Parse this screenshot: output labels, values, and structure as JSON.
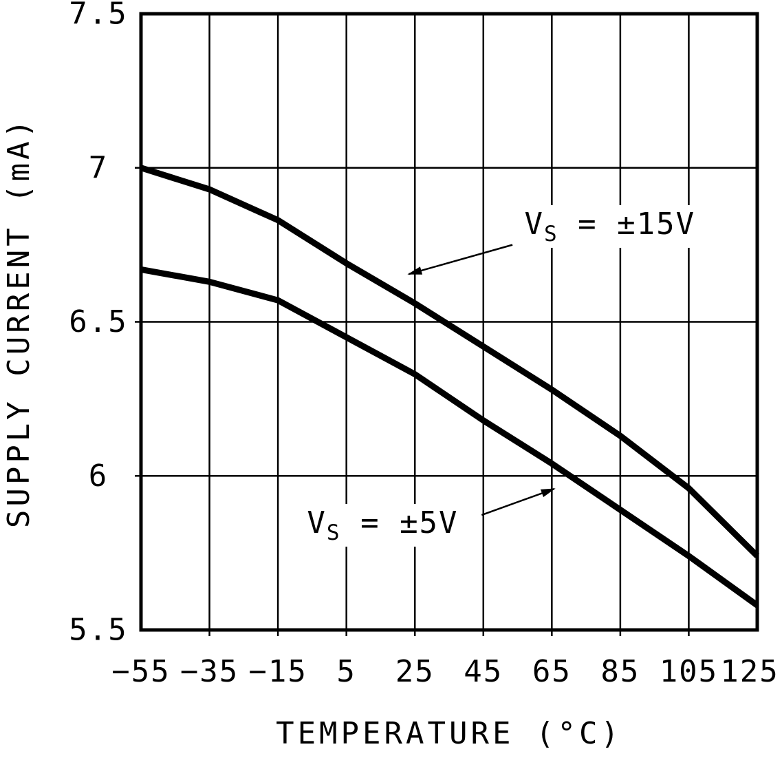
{
  "chart_data": {
    "type": "line",
    "title": "",
    "xlabel": "TEMPERATURE (°C)",
    "ylabel": "SUPPLY CURRENT (mA)",
    "xlim": [
      -55,
      125
    ],
    "ylim": [
      5.5,
      7.5
    ],
    "grid": true,
    "background_color": "#ffffff",
    "line_color": "#000000",
    "x_ticks": [
      {
        "value": -55,
        "label": "−55"
      },
      {
        "value": -35,
        "label": "−35"
      },
      {
        "value": -15,
        "label": "−15"
      },
      {
        "value": 5,
        "label": "5"
      },
      {
        "value": 25,
        "label": "25"
      },
      {
        "value": 45,
        "label": "45"
      },
      {
        "value": 65,
        "label": "65"
      },
      {
        "value": 85,
        "label": "85"
      },
      {
        "value": 105,
        "label": "105"
      },
      {
        "value": 125,
        "label": "125"
      }
    ],
    "y_ticks": [
      {
        "value": 5.5,
        "label": "5.5"
      },
      {
        "value": 6,
        "label": "6"
      },
      {
        "value": 6.5,
        "label": "6.5"
      },
      {
        "value": 7,
        "label": "7"
      },
      {
        "value": 7.5,
        "label": "7.5"
      }
    ],
    "x": [
      -55,
      -35,
      -15,
      5,
      25,
      45,
      65,
      85,
      105,
      125
    ],
    "series": [
      {
        "name": "VS = ±15V",
        "values": [
          7.0,
          6.93,
          6.83,
          6.69,
          6.56,
          6.42,
          6.28,
          6.13,
          5.96,
          5.74
        ]
      },
      {
        "name": "VS = ±5V",
        "values": [
          6.67,
          6.63,
          6.57,
          6.45,
          6.33,
          6.18,
          6.04,
          5.89,
          5.74,
          5.58
        ]
      }
    ],
    "annotations": [
      {
        "pre": "V",
        "sub": "S",
        "post": " = ±15V",
        "label_at": [
          57,
          6.785
        ],
        "arrow_from": [
          53.5,
          6.75
        ],
        "arrow_to": [
          23.2,
          6.655
        ]
      },
      {
        "pre": "V",
        "sub": "S",
        "post": " = ±5V",
        "label_at": [
          -6.5,
          5.815
        ],
        "arrow_from": [
          44.5,
          5.873
        ],
        "arrow_to": [
          65.7,
          5.958
        ]
      }
    ]
  }
}
